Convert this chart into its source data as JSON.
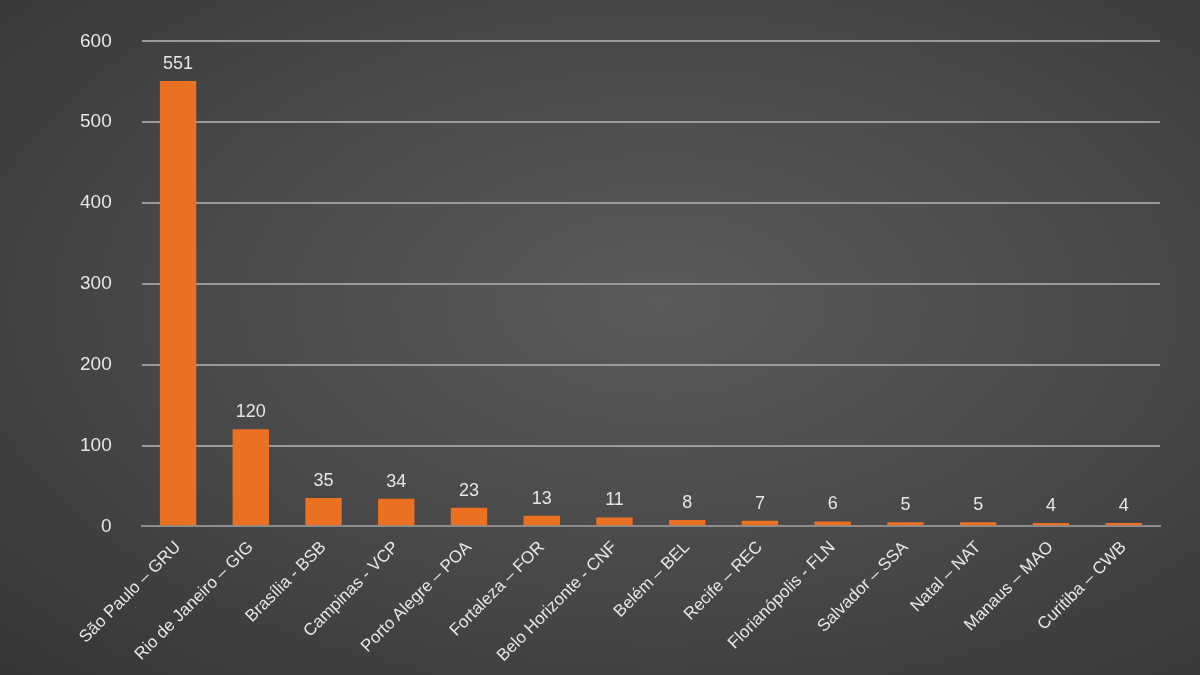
{
  "chart_data": {
    "type": "bar",
    "categories": [
      "São Paulo – GRU",
      "Rio de Janeiro – GIG",
      "Brasília - BSB",
      "Campinas - VCP",
      "Porto Alegre – POA",
      "Fortaleza – FOR",
      "Belo Horizonte - CNF",
      "Belém – BEL",
      "Recife – REC",
      "Florianópolis - FLN",
      "Salvador – SSA",
      "Natal – NAT",
      "Manaus – MAO",
      "Curitiba – CWB"
    ],
    "values": [
      551,
      120,
      35,
      34,
      23,
      13,
      11,
      8,
      7,
      6,
      5,
      5,
      4,
      4
    ],
    "color": "#e97121",
    "ylim": [
      0,
      600
    ],
    "yticks": [
      0,
      100,
      200,
      300,
      400,
      500,
      600
    ],
    "grid": "y",
    "data_labels": true,
    "legend": false
  }
}
